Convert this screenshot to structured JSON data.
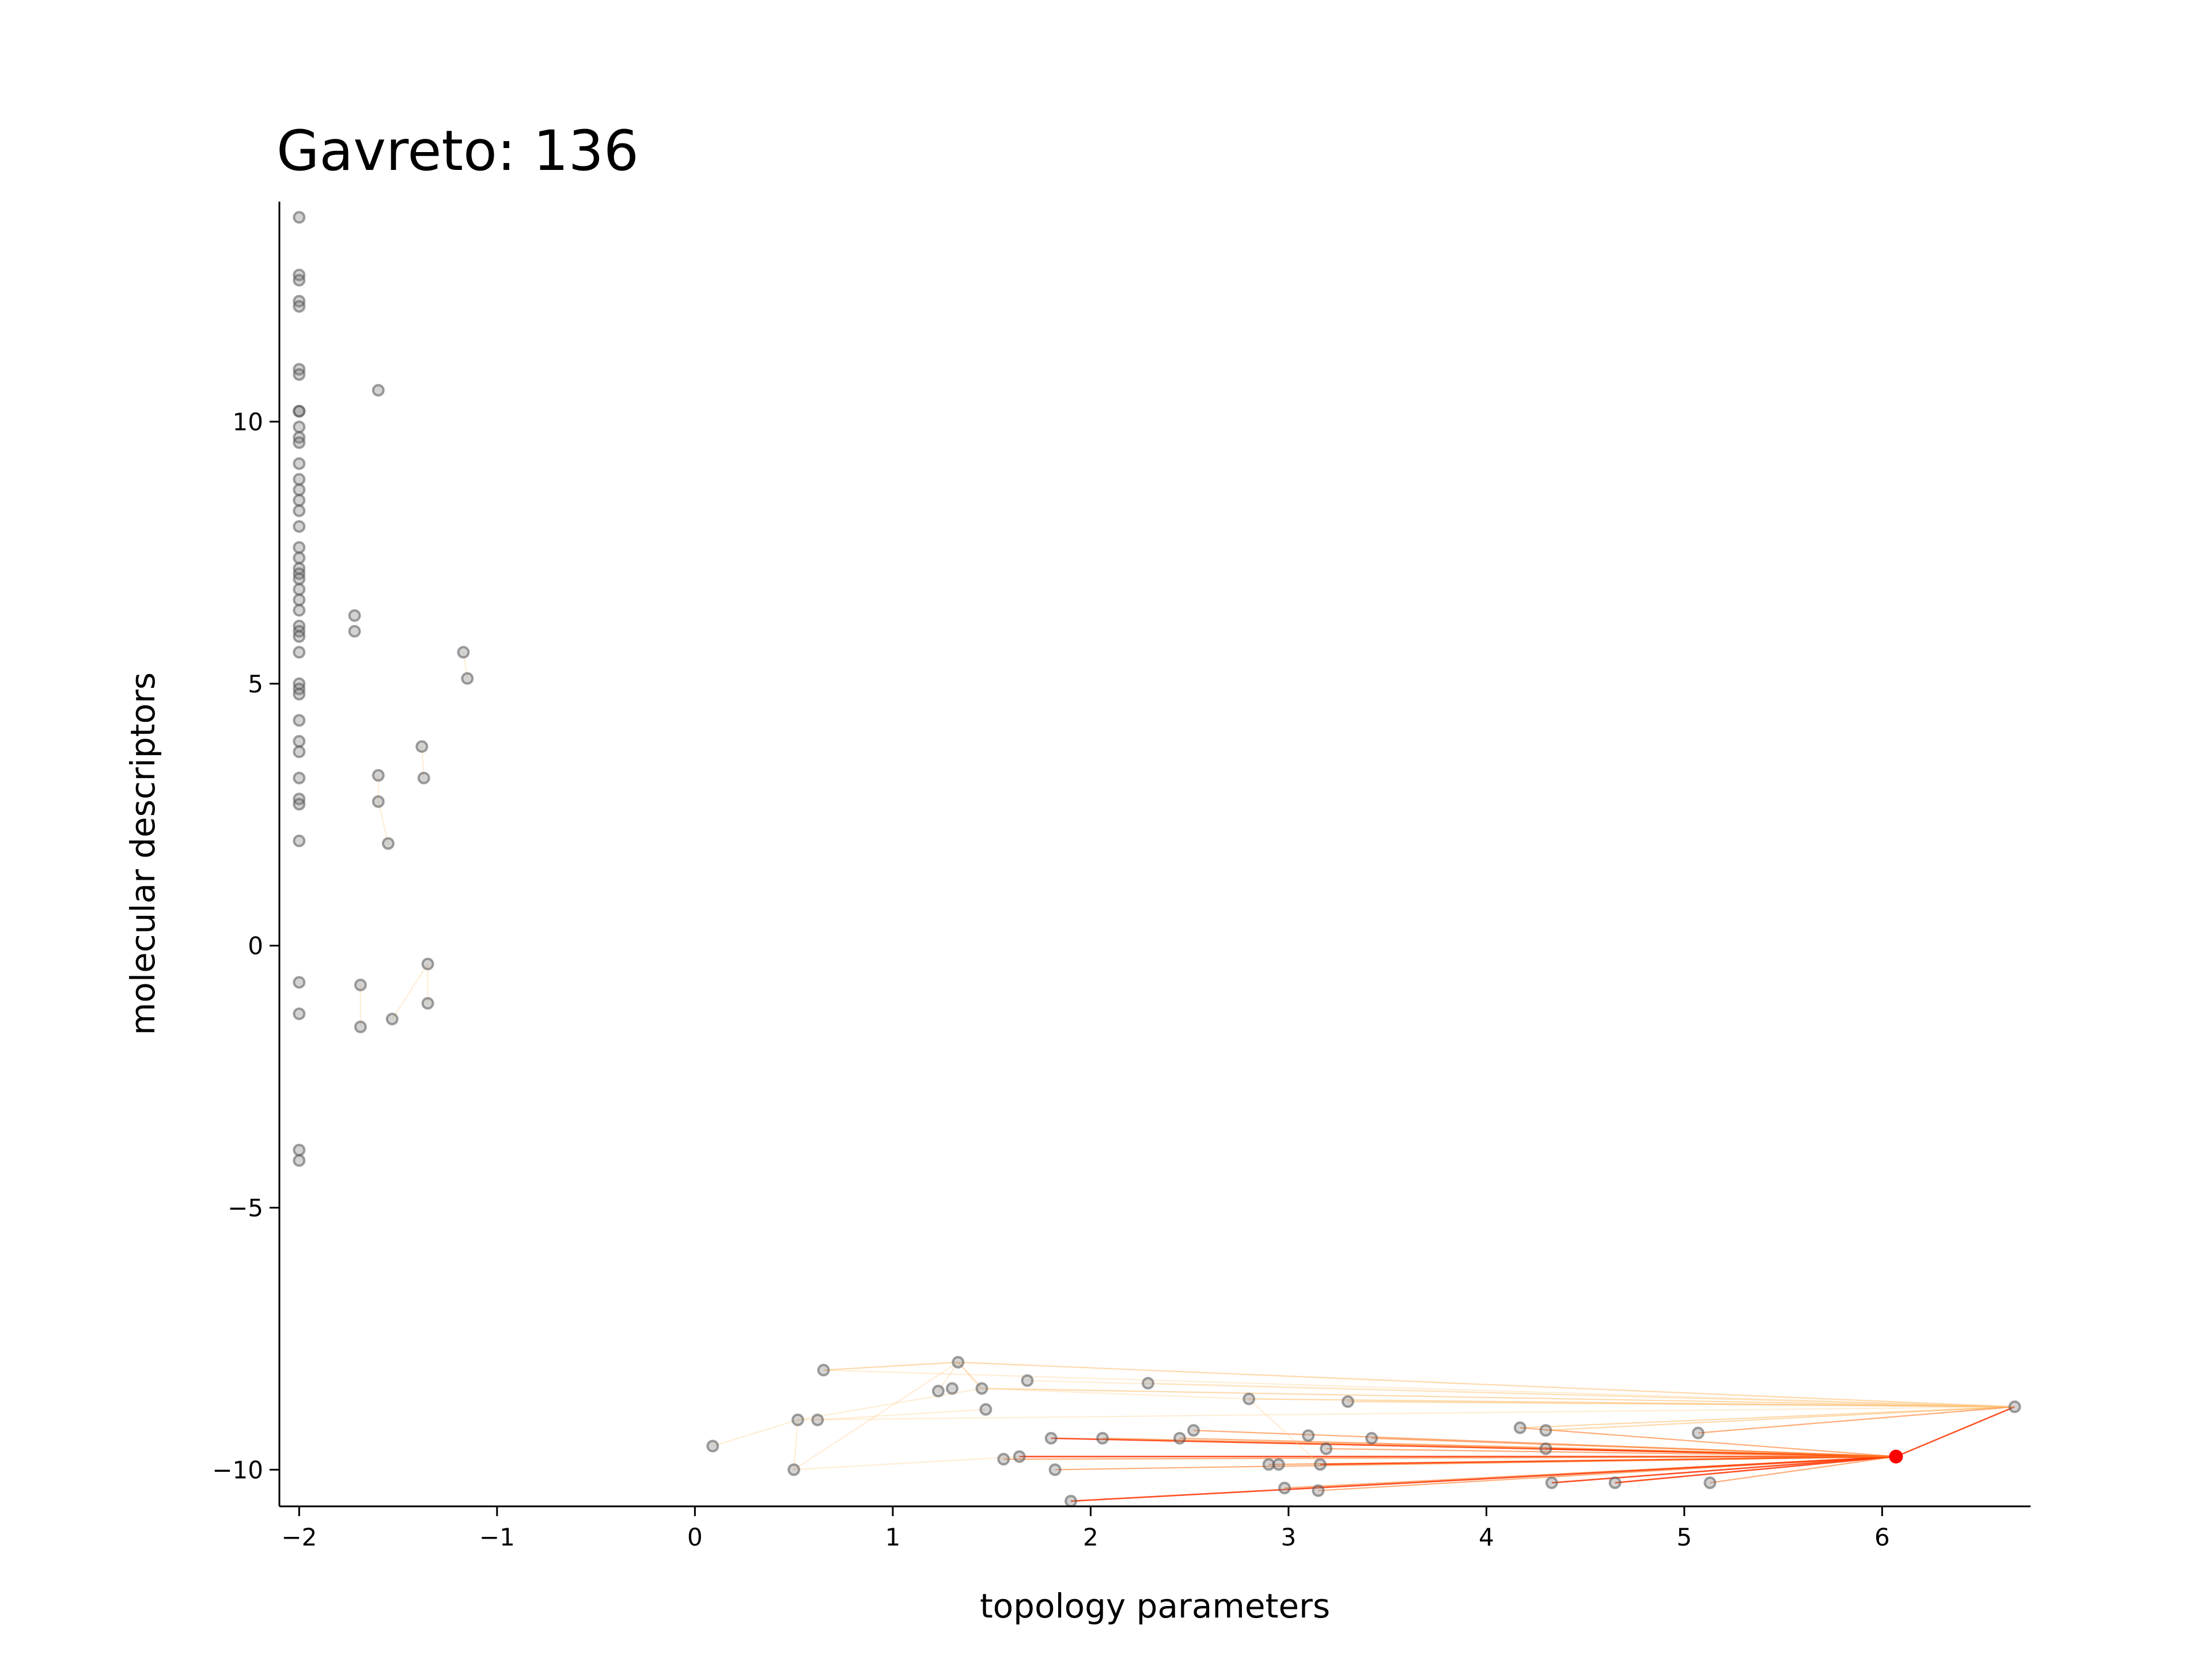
{
  "chart_data": {
    "type": "scatter",
    "title": "Gavreto: 136",
    "xlabel": "topology parameters",
    "ylabel": "molecular descriptors",
    "xlim": [
      -2.1,
      6.75
    ],
    "ylim": [
      -10.7,
      14.2
    ],
    "xticks": [
      -2,
      -1,
      0,
      1,
      2,
      3,
      4,
      5,
      6
    ],
    "yticks": [
      -10,
      -5,
      0,
      5,
      10
    ],
    "xtick_labels": [
      "−2",
      "−1",
      "0",
      "1",
      "2",
      "3",
      "4",
      "5",
      "6"
    ],
    "ytick_labels": [
      "−10",
      "−5",
      "0",
      "5",
      "10"
    ],
    "grid": false,
    "highlight": {
      "x": 6.07,
      "y": -9.75,
      "color": "#ff0000"
    },
    "point_color": "#808080",
    "edge_colors": [
      "#ff3300",
      "#ff7722",
      "#ffaa44",
      "#ffcc88"
    ],
    "points": [
      [
        -2.0,
        13.9
      ],
      [
        -2.0,
        12.8
      ],
      [
        -2.0,
        12.7
      ],
      [
        -2.0,
        12.3
      ],
      [
        -2.0,
        12.2
      ],
      [
        -2.0,
        11.0
      ],
      [
        -2.0,
        10.9
      ],
      [
        -2.0,
        10.2
      ],
      [
        -2.0,
        10.2
      ],
      [
        -2.0,
        9.9
      ],
      [
        -2.0,
        9.7
      ],
      [
        -2.0,
        9.6
      ],
      [
        -2.0,
        9.2
      ],
      [
        -2.0,
        8.9
      ],
      [
        -2.0,
        8.7
      ],
      [
        -2.0,
        8.5
      ],
      [
        -2.0,
        8.3
      ],
      [
        -2.0,
        8.0
      ],
      [
        -2.0,
        7.6
      ],
      [
        -2.0,
        7.4
      ],
      [
        -2.0,
        7.2
      ],
      [
        -2.0,
        7.1
      ],
      [
        -2.0,
        7.0
      ],
      [
        -2.0,
        6.8
      ],
      [
        -2.0,
        6.6
      ],
      [
        -2.0,
        6.4
      ],
      [
        -2.0,
        6.1
      ],
      [
        -2.0,
        6.0
      ],
      [
        -2.0,
        5.9
      ],
      [
        -2.0,
        5.6
      ],
      [
        -2.0,
        5.0
      ],
      [
        -2.0,
        4.9
      ],
      [
        -2.0,
        4.8
      ],
      [
        -2.0,
        4.3
      ],
      [
        -2.0,
        3.9
      ],
      [
        -2.0,
        3.7
      ],
      [
        -2.0,
        3.2
      ],
      [
        -2.0,
        2.8
      ],
      [
        -2.0,
        2.7
      ],
      [
        -2.0,
        2.0
      ],
      [
        -2.0,
        -0.7
      ],
      [
        -2.0,
        -1.3
      ],
      [
        -2.0,
        -3.9
      ],
      [
        -2.0,
        -4.1
      ],
      [
        -1.6,
        10.6
      ],
      [
        -1.72,
        6.3
      ],
      [
        -1.72,
        6.0
      ],
      [
        -1.17,
        5.6
      ],
      [
        -1.15,
        5.1
      ],
      [
        -1.38,
        3.8
      ],
      [
        -1.37,
        3.2
      ],
      [
        -1.6,
        3.25
      ],
      [
        -1.6,
        2.75
      ],
      [
        -1.55,
        1.95
      ],
      [
        -1.35,
        -0.35
      ],
      [
        -1.35,
        -1.1
      ],
      [
        -1.69,
        -0.75
      ],
      [
        -1.69,
        -1.55
      ],
      [
        -1.53,
        -1.4
      ],
      [
        0.09,
        -9.55
      ],
      [
        0.5,
        -10.0
      ],
      [
        0.52,
        -9.05
      ],
      [
        0.62,
        -9.05
      ],
      [
        0.65,
        -8.1
      ],
      [
        1.23,
        -8.5
      ],
      [
        1.3,
        -8.45
      ],
      [
        1.33,
        -7.95
      ],
      [
        1.45,
        -8.45
      ],
      [
        1.47,
        -8.85
      ],
      [
        1.56,
        -9.8
      ],
      [
        1.64,
        -9.75
      ],
      [
        1.68,
        -8.3
      ],
      [
        1.8,
        -9.4
      ],
      [
        1.82,
        -10.0
      ],
      [
        1.9,
        -10.6
      ],
      [
        2.06,
        -9.4
      ],
      [
        2.29,
        -8.35
      ],
      [
        2.45,
        -9.4
      ],
      [
        2.52,
        -9.25
      ],
      [
        2.8,
        -8.65
      ],
      [
        2.9,
        -9.9
      ],
      [
        2.95,
        -9.9
      ],
      [
        2.98,
        -10.35
      ],
      [
        3.1,
        -9.35
      ],
      [
        3.15,
        -10.4
      ],
      [
        3.16,
        -9.9
      ],
      [
        3.19,
        -9.6
      ],
      [
        3.3,
        -8.7
      ],
      [
        3.42,
        -9.4
      ],
      [
        4.17,
        -9.2
      ],
      [
        4.3,
        -9.6
      ],
      [
        4.3,
        -9.25
      ],
      [
        4.33,
        -10.25
      ],
      [
        4.65,
        -10.25
      ],
      [
        5.07,
        -9.3
      ],
      [
        5.13,
        -10.25
      ],
      [
        6.67,
        -8.8
      ]
    ],
    "edges": [
      [
        6.67,
        -8.8,
        1.33,
        -7.95,
        2
      ],
      [
        6.67,
        -8.8,
        1.45,
        -8.45,
        2
      ],
      [
        6.67,
        -8.8,
        2.29,
        -8.35,
        3
      ],
      [
        6.67,
        -8.8,
        2.8,
        -8.65,
        2
      ],
      [
        6.67,
        -8.8,
        3.3,
        -8.7,
        2
      ],
      [
        6.67,
        -8.8,
        4.17,
        -9.2,
        2
      ],
      [
        6.67,
        -8.8,
        4.3,
        -9.25,
        2
      ],
      [
        6.67,
        -8.8,
        5.07,
        -9.3,
        1
      ],
      [
        6.67,
        -8.8,
        6.07,
        -9.75,
        0
      ],
      [
        6.67,
        -8.8,
        0.65,
        -8.1,
        3
      ],
      [
        6.67,
        -8.8,
        1.68,
        -8.3,
        3
      ],
      [
        6.67,
        -8.8,
        0.52,
        -9.05,
        3
      ],
      [
        6.07,
        -9.75,
        1.64,
        -9.75,
        0
      ],
      [
        6.07,
        -9.75,
        1.8,
        -9.4,
        0
      ],
      [
        6.07,
        -9.75,
        2.06,
        -9.4,
        1
      ],
      [
        6.07,
        -9.75,
        2.52,
        -9.25,
        1
      ],
      [
        6.07,
        -9.75,
        2.9,
        -9.9,
        1
      ],
      [
        6.07,
        -9.75,
        3.16,
        -9.9,
        0
      ],
      [
        6.07,
        -9.75,
        3.19,
        -9.6,
        1
      ],
      [
        6.07,
        -9.75,
        3.15,
        -10.4,
        1
      ],
      [
        6.07,
        -9.75,
        2.98,
        -10.35,
        1
      ],
      [
        6.07,
        -9.75,
        4.33,
        -10.25,
        0
      ],
      [
        6.07,
        -9.75,
        4.65,
        -10.25,
        0
      ],
      [
        6.07,
        -9.75,
        4.3,
        -9.6,
        0
      ],
      [
        6.07,
        -9.75,
        5.13,
        -10.25,
        1
      ],
      [
        6.07,
        -9.75,
        1.9,
        -10.6,
        0
      ],
      [
        6.07,
        -9.75,
        1.56,
        -9.8,
        1
      ],
      [
        6.07,
        -9.75,
        3.42,
        -9.4,
        1
      ],
      [
        6.07,
        -9.75,
        1.82,
        -10.0,
        1
      ],
      [
        6.07,
        -9.75,
        4.17,
        -9.2,
        1
      ],
      [
        6.07,
        -9.75,
        2.45,
        -9.4,
        1
      ],
      [
        1.33,
        -7.95,
        0.65,
        -8.1,
        2
      ],
      [
        1.33,
        -7.95,
        1.23,
        -8.5,
        3
      ],
      [
        1.33,
        -7.95,
        1.45,
        -8.45,
        2
      ],
      [
        0.5,
        -10.0,
        0.52,
        -9.05,
        3
      ],
      [
        0.5,
        -10.0,
        1.33,
        -7.95,
        3
      ],
      [
        0.09,
        -9.55,
        0.52,
        -9.05,
        3
      ],
      [
        0.52,
        -9.05,
        1.45,
        -8.45,
        3
      ],
      [
        0.62,
        -9.05,
        1.47,
        -8.85,
        3
      ],
      [
        0.5,
        -10.0,
        1.64,
        -9.75,
        3
      ],
      [
        2.8,
        -8.65,
        3.16,
        -9.9,
        3
      ],
      [
        1.45,
        -8.45,
        2.8,
        -8.65,
        3
      ],
      [
        -1.17,
        5.6,
        -1.15,
        5.1,
        3
      ],
      [
        -1.38,
        3.8,
        -1.37,
        3.2,
        3
      ],
      [
        -1.6,
        3.25,
        -1.6,
        2.75,
        3
      ],
      [
        -1.6,
        2.75,
        -1.55,
        1.95,
        3
      ],
      [
        -1.35,
        -0.35,
        -1.35,
        -1.1,
        3
      ],
      [
        -1.35,
        -0.35,
        -1.53,
        -1.4,
        3
      ],
      [
        -1.69,
        -0.75,
        -1.69,
        -1.55,
        3
      ]
    ]
  }
}
